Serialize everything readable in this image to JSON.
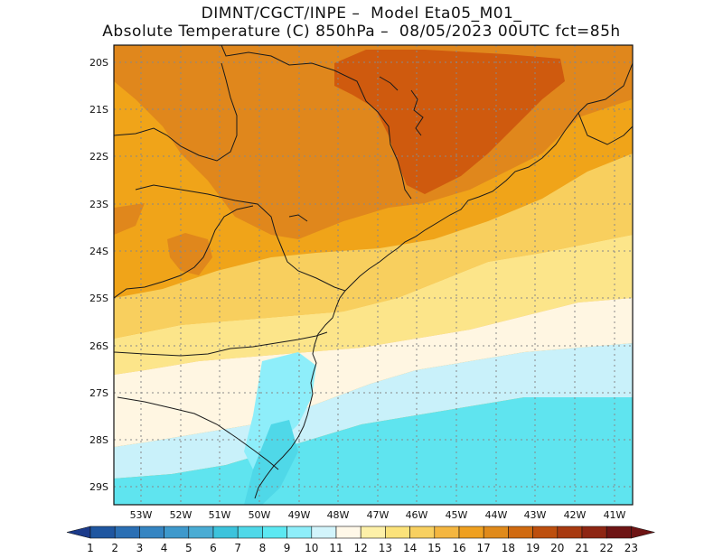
{
  "header": {
    "line1": "DIMNT/CGCT/INPE –  Model Eta05_M01_",
    "line2": "Absolute Temperature (C) 850hPa –  08/05/2023 00UTC fct=85h"
  },
  "map": {
    "lat_labels": [
      "20S",
      "21S",
      "22S",
      "23S",
      "24S",
      "25S",
      "26S",
      "27S",
      "28S",
      "29S"
    ],
    "lon_labels": [
      "53W",
      "52W",
      "51W",
      "50W",
      "49W",
      "48W",
      "47W",
      "46W",
      "45W",
      "44W",
      "43W",
      "42W",
      "41W"
    ]
  },
  "colorbar": {
    "labels": [
      "1",
      "2",
      "3",
      "4",
      "5",
      "6",
      "7",
      "8",
      "9",
      "10",
      "11",
      "12",
      "13",
      "14",
      "15",
      "16",
      "17",
      "18",
      "19",
      "20",
      "21",
      "22",
      "23"
    ],
    "colors": [
      "#1b3a8a",
      "#1e56a0",
      "#2a6fb4",
      "#3585c2",
      "#3e99cc",
      "#4aacd4",
      "#3cc3dc",
      "#4fd8e8",
      "#5ce8f2",
      "#8eeefa",
      "#d2f4fb",
      "#fff8e8",
      "#fdf0a8",
      "#fbe27a",
      "#f8d060",
      "#f4b640",
      "#efa020",
      "#e08a1a",
      "#d06a10",
      "#bd4f0e",
      "#a83a10",
      "#8e2613",
      "#6e1414"
    ]
  }
}
